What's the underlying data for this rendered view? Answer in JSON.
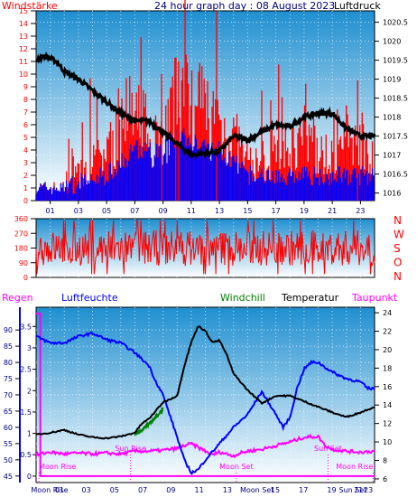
{
  "colors": {
    "sky_top": "#1f8fd0",
    "sky_bottom": "#ffffff",
    "wind_red": "#ff0000",
    "wind_blue": "#0000ff",
    "pressure": "#000000",
    "humidity": "#0000ff",
    "temperature": "#000000",
    "windchill": "#008000",
    "dewpoint": "#ff00ff",
    "rain": "#ff00ff",
    "grid": "#ffffff",
    "axis_text": "#000000",
    "label_blue": "#000080"
  },
  "chart_data": [
    {
      "id": "wind-pressure",
      "type": "bar",
      "title": "24 hour graph day : 08 August 2023",
      "left_label": "Windstärke",
      "right_label": "Luftdruck",
      "x_ticks": [
        "01",
        "03",
        "05",
        "07",
        "09",
        "11",
        "13",
        "15",
        "17",
        "19",
        "21",
        "23"
      ],
      "left_ticks": [
        "0",
        "1",
        "2",
        "3",
        "4",
        "5",
        "6",
        "7",
        "8",
        "9",
        "10",
        "11",
        "12",
        "13",
        "14",
        "15"
      ],
      "right_ticks": [
        "1016",
        "1016.5",
        "1017",
        "1017.5",
        "1018",
        "1018.5",
        "1019",
        "1019.5",
        "1020",
        "1020.5"
      ],
      "ylim_left": [
        0,
        15
      ],
      "ylim_right": [
        1015.8,
        1020.8
      ],
      "gust_keyframes": [
        [
          0,
          1
        ],
        [
          2,
          1
        ],
        [
          2.5,
          3
        ],
        [
          3,
          2
        ],
        [
          4,
          3
        ],
        [
          5,
          4
        ],
        [
          6,
          5
        ],
        [
          6.5,
          7
        ],
        [
          7,
          6
        ],
        [
          8,
          6
        ],
        [
          9,
          5
        ],
        [
          10,
          8
        ],
        [
          11,
          9
        ],
        [
          12,
          7
        ],
        [
          13,
          6
        ],
        [
          14,
          5
        ],
        [
          15,
          3
        ],
        [
          16,
          3
        ],
        [
          17,
          4
        ],
        [
          18,
          4
        ],
        [
          19,
          5
        ],
        [
          20,
          4
        ],
        [
          21,
          3
        ],
        [
          22,
          5
        ],
        [
          23,
          5
        ],
        [
          24,
          4
        ]
      ],
      "mean_keyframes": [
        [
          0,
          2
        ],
        [
          2,
          1
        ],
        [
          3,
          1.5
        ],
        [
          5,
          2
        ],
        [
          6,
          3
        ],
        [
          7,
          4
        ],
        [
          8,
          4
        ],
        [
          9,
          4
        ],
        [
          10,
          5
        ],
        [
          11,
          5
        ],
        [
          12,
          4
        ],
        [
          13,
          4
        ],
        [
          14,
          3
        ],
        [
          15,
          2
        ],
        [
          16,
          2
        ],
        [
          17,
          2
        ],
        [
          18,
          2
        ],
        [
          19,
          2
        ],
        [
          20,
          2
        ],
        [
          21,
          2
        ],
        [
          22,
          2
        ],
        [
          23,
          2
        ],
        [
          24,
          2
        ]
      ],
      "pressure_keyframes": [
        [
          0,
          1019.5
        ],
        [
          0.5,
          1019.6
        ],
        [
          1,
          1019.55
        ],
        [
          1.5,
          1019.45
        ],
        [
          2,
          1019.2
        ],
        [
          3,
          1019.0
        ],
        [
          4,
          1018.7
        ],
        [
          5,
          1018.4
        ],
        [
          6,
          1018.1
        ],
        [
          7,
          1017.9
        ],
        [
          8,
          1017.9
        ],
        [
          9,
          1017.6
        ],
        [
          10,
          1017.3
        ],
        [
          11,
          1017.0
        ],
        [
          12,
          1017.05
        ],
        [
          13,
          1017.1
        ],
        [
          14,
          1017.5
        ],
        [
          15,
          1017.4
        ],
        [
          16,
          1017.6
        ],
        [
          17,
          1017.8
        ],
        [
          18,
          1017.75
        ],
        [
          19,
          1018.0
        ],
        [
          20,
          1018.1
        ],
        [
          21,
          1018.1
        ],
        [
          22,
          1017.7
        ],
        [
          23,
          1017.5
        ],
        [
          24,
          1017.5
        ]
      ]
    },
    {
      "id": "wind-direction",
      "type": "line",
      "right_labels": [
        "N",
        "W",
        "S",
        "O",
        "N"
      ],
      "y_ticks": [
        "0",
        "90",
        "180",
        "270",
        "360"
      ],
      "ylim": [
        0,
        360
      ]
    },
    {
      "id": "temp-humidity",
      "type": "line",
      "legend": [
        "Regen",
        "Luftfeuchte",
        "Windchill",
        "Temperatur",
        "Taupunkt"
      ],
      "left_ticks": [
        "45",
        "50",
        "55",
        "60",
        "65",
        "70",
        "75",
        "80",
        "85",
        "90"
      ],
      "left_ylim": [
        43,
        97
      ],
      "inner_ticks": [
        "0",
        "0.5",
        "1",
        "1.5",
        "2",
        "2.5",
        "3",
        "3.5"
      ],
      "inner_ylim": [
        -0.15,
        3.95
      ],
      "right_ticks": [
        "6",
        "8",
        "10",
        "12",
        "14",
        "16",
        "18",
        "20",
        "22",
        "24"
      ],
      "right_ylim": [
        5.6,
        24.6
      ],
      "x_labels": [
        "Moon Rise",
        "01",
        "03",
        "05",
        "07",
        "09",
        "11",
        "13",
        "Moon Set",
        "15",
        "17",
        "19",
        "Sun Set",
        "21",
        "23"
      ],
      "events": [
        {
          "label": "Moon Rise",
          "pos": "bottom"
        },
        {
          "label": "Sun Rise",
          "pos": "mid"
        },
        {
          "label": "Moon Set",
          "pos": "bottom"
        },
        {
          "label": "Sun Set",
          "pos": "mid"
        },
        {
          "label": "Moon Rise",
          "pos": "bottom"
        }
      ],
      "humidity_keyframes": [
        [
          0,
          88
        ],
        [
          0.5,
          87
        ],
        [
          1,
          86
        ],
        [
          2,
          86
        ],
        [
          3,
          88
        ],
        [
          4,
          89
        ],
        [
          5,
          87
        ],
        [
          6,
          86
        ],
        [
          7,
          83
        ],
        [
          8,
          79
        ],
        [
          8.5,
          74
        ],
        [
          9,
          70
        ],
        [
          10,
          57
        ],
        [
          10.5,
          50
        ],
        [
          11,
          46
        ],
        [
          11.5,
          47
        ],
        [
          12,
          50
        ],
        [
          13,
          55
        ],
        [
          14,
          60
        ],
        [
          15,
          64
        ],
        [
          16,
          71
        ],
        [
          17,
          64
        ],
        [
          17.5,
          60
        ],
        [
          18,
          63
        ],
        [
          18.5,
          72
        ],
        [
          19,
          78
        ],
        [
          19.5,
          80
        ],
        [
          20,
          80
        ],
        [
          21,
          77
        ],
        [
          22,
          75
        ],
        [
          23,
          74
        ],
        [
          23.5,
          72
        ],
        [
          24,
          72
        ]
      ],
      "temperature_keyframes": [
        [
          0,
          10.8
        ],
        [
          1,
          11.0
        ],
        [
          2,
          11.3
        ],
        [
          3,
          10.8
        ],
        [
          4,
          10.5
        ],
        [
          5,
          10.4
        ],
        [
          6,
          10.6
        ],
        [
          7,
          11.0
        ],
        [
          7.5,
          12.0
        ],
        [
          8,
          12.5
        ],
        [
          8.5,
          13.4
        ],
        [
          9,
          14.3
        ],
        [
          10,
          15.0
        ],
        [
          10.5,
          18.2
        ],
        [
          11,
          20.8
        ],
        [
          11.5,
          22.6
        ],
        [
          12,
          22.0
        ],
        [
          12.5,
          20.8
        ],
        [
          13,
          21.0
        ],
        [
          13.5,
          19.5
        ],
        [
          14,
          17.4
        ],
        [
          15,
          15.6
        ],
        [
          16,
          14.2
        ],
        [
          16.5,
          14.6
        ],
        [
          17,
          15.0
        ],
        [
          18,
          15.0
        ],
        [
          19,
          14.4
        ],
        [
          20,
          13.8
        ],
        [
          21,
          13.2
        ],
        [
          22,
          12.7
        ],
        [
          23,
          13.2
        ],
        [
          24,
          13.8
        ]
      ],
      "windchill_keyframes": [
        [
          7,
          10.9
        ],
        [
          7.5,
          11.3
        ],
        [
          8,
          11.9
        ],
        [
          8.5,
          12.7
        ],
        [
          9,
          13.6
        ]
      ],
      "dewpoint_keyframes": [
        [
          0,
          8.6
        ],
        [
          1,
          8.9
        ],
        [
          2,
          8.7
        ],
        [
          3,
          8.8
        ],
        [
          4,
          8.7
        ],
        [
          5,
          8.8
        ],
        [
          6,
          8.7
        ],
        [
          7,
          9.0
        ],
        [
          8,
          9.0
        ],
        [
          9,
          9.1
        ],
        [
          10,
          9.3
        ],
        [
          10.5,
          9.6
        ],
        [
          11,
          9.8
        ],
        [
          11.5,
          9.4
        ],
        [
          12,
          9.0
        ],
        [
          12.5,
          8.6
        ],
        [
          13,
          8.9
        ],
        [
          14,
          8.5
        ],
        [
          14.5,
          8.8
        ],
        [
          15,
          9.0
        ],
        [
          16,
          9.2
        ],
        [
          17,
          9.6
        ],
        [
          18,
          10.0
        ],
        [
          19,
          10.5
        ],
        [
          20,
          10.6
        ],
        [
          20.5,
          9.6
        ],
        [
          21,
          9.2
        ],
        [
          22,
          9.0
        ],
        [
          23,
          8.9
        ],
        [
          24,
          9.0
        ]
      ],
      "rain_keyframes": [
        [
          0,
          3.8
        ],
        [
          0.3,
          3.8
        ],
        [
          0.3,
          0
        ],
        [
          24,
          0
        ]
      ]
    }
  ]
}
